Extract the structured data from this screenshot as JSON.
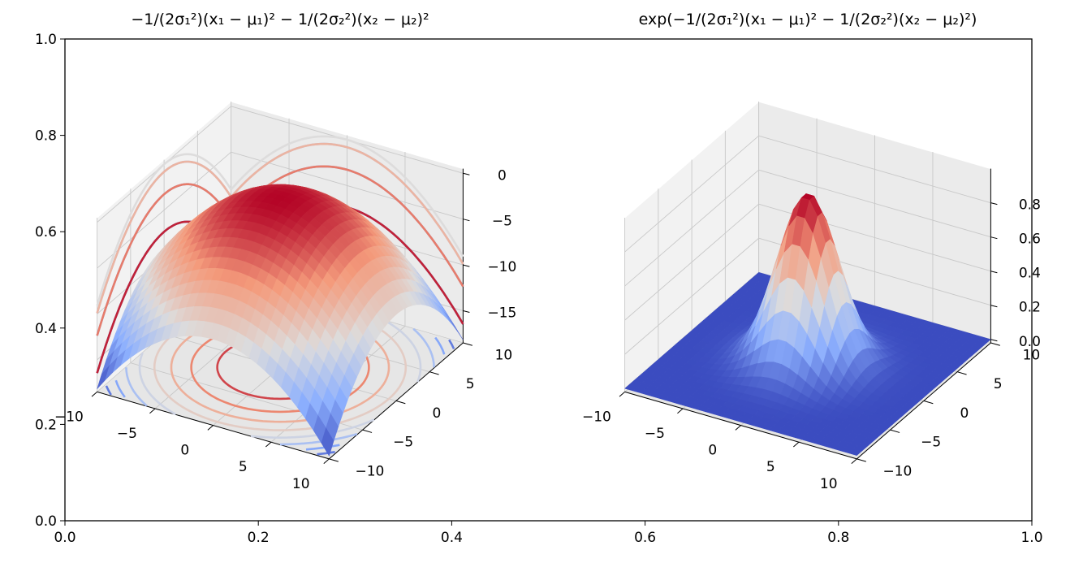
{
  "figure": {
    "outer_axes": {
      "xlim": [
        0,
        1
      ],
      "ylim": [
        0,
        1
      ],
      "xticks": [
        "0.0",
        "0.2",
        "0.4",
        "0.6",
        "0.8",
        "1.0"
      ],
      "yticks": [
        "0.0",
        "0.2",
        "0.4",
        "0.6",
        "0.8",
        "1.0"
      ]
    }
  },
  "chart_data": [
    {
      "type": "surface3d",
      "title": "−1/(2σ₁²)(x₁ − μ₁)² − 1/(2σ₂²)(x₂ − μ₂)²",
      "function": "-(x-mu1)^2/(2*s1^2) - (y-mu2)^2/(2*s2^2)",
      "params": {
        "mu1": 0,
        "mu2": 0,
        "sigma1_sq": 5.5,
        "sigma2_sq": 5.5
      },
      "xlim": [
        -10,
        10
      ],
      "ylim": [
        -10,
        10
      ],
      "zlim": [
        -18.5,
        0.5
      ],
      "xticks": [
        "−10",
        "−5",
        "0",
        "5",
        "10"
      ],
      "yticks": [
        "−10",
        "−5",
        "0",
        "5",
        "10"
      ],
      "zticks": [
        "0",
        "−5",
        "−10",
        "−15"
      ],
      "colormap": "coolwarm",
      "contour_projections": true,
      "grid": true
    },
    {
      "type": "surface3d",
      "title": "exp(−1/(2σ₁²)(x₁ − μ₁)² − 1/(2σ₂²)(x₂ − μ₂)²)",
      "function": "exp(-(x-mu1)^2/(2*s1^2) - (y-mu2)^2/(2*s2^2))",
      "params": {
        "mu1": 0,
        "mu2": 0,
        "sigma1_sq": 5.5,
        "sigma2_sq": 5.5
      },
      "xlim": [
        -10,
        10
      ],
      "ylim": [
        -10,
        10
      ],
      "zlim": [
        -0.02,
        1.0
      ],
      "xticks": [
        "−10",
        "−5",
        "0",
        "5",
        "10"
      ],
      "yticks": [
        "−10",
        "−5",
        "0",
        "5",
        "10"
      ],
      "zticks": [
        "0.0",
        "0.2",
        "0.4",
        "0.6",
        "0.8"
      ],
      "colormap": "coolwarm",
      "contour_projections": false,
      "grid": true
    }
  ],
  "colors": {
    "coolwarm": [
      "#3b4cc0",
      "#8db0fe",
      "#dddcdc",
      "#f49a7b",
      "#b40426"
    ],
    "pane": [
      "#f2f2f2",
      "#ebebeb",
      "#e6e6e6"
    ],
    "grid": "#c8c8c8"
  }
}
